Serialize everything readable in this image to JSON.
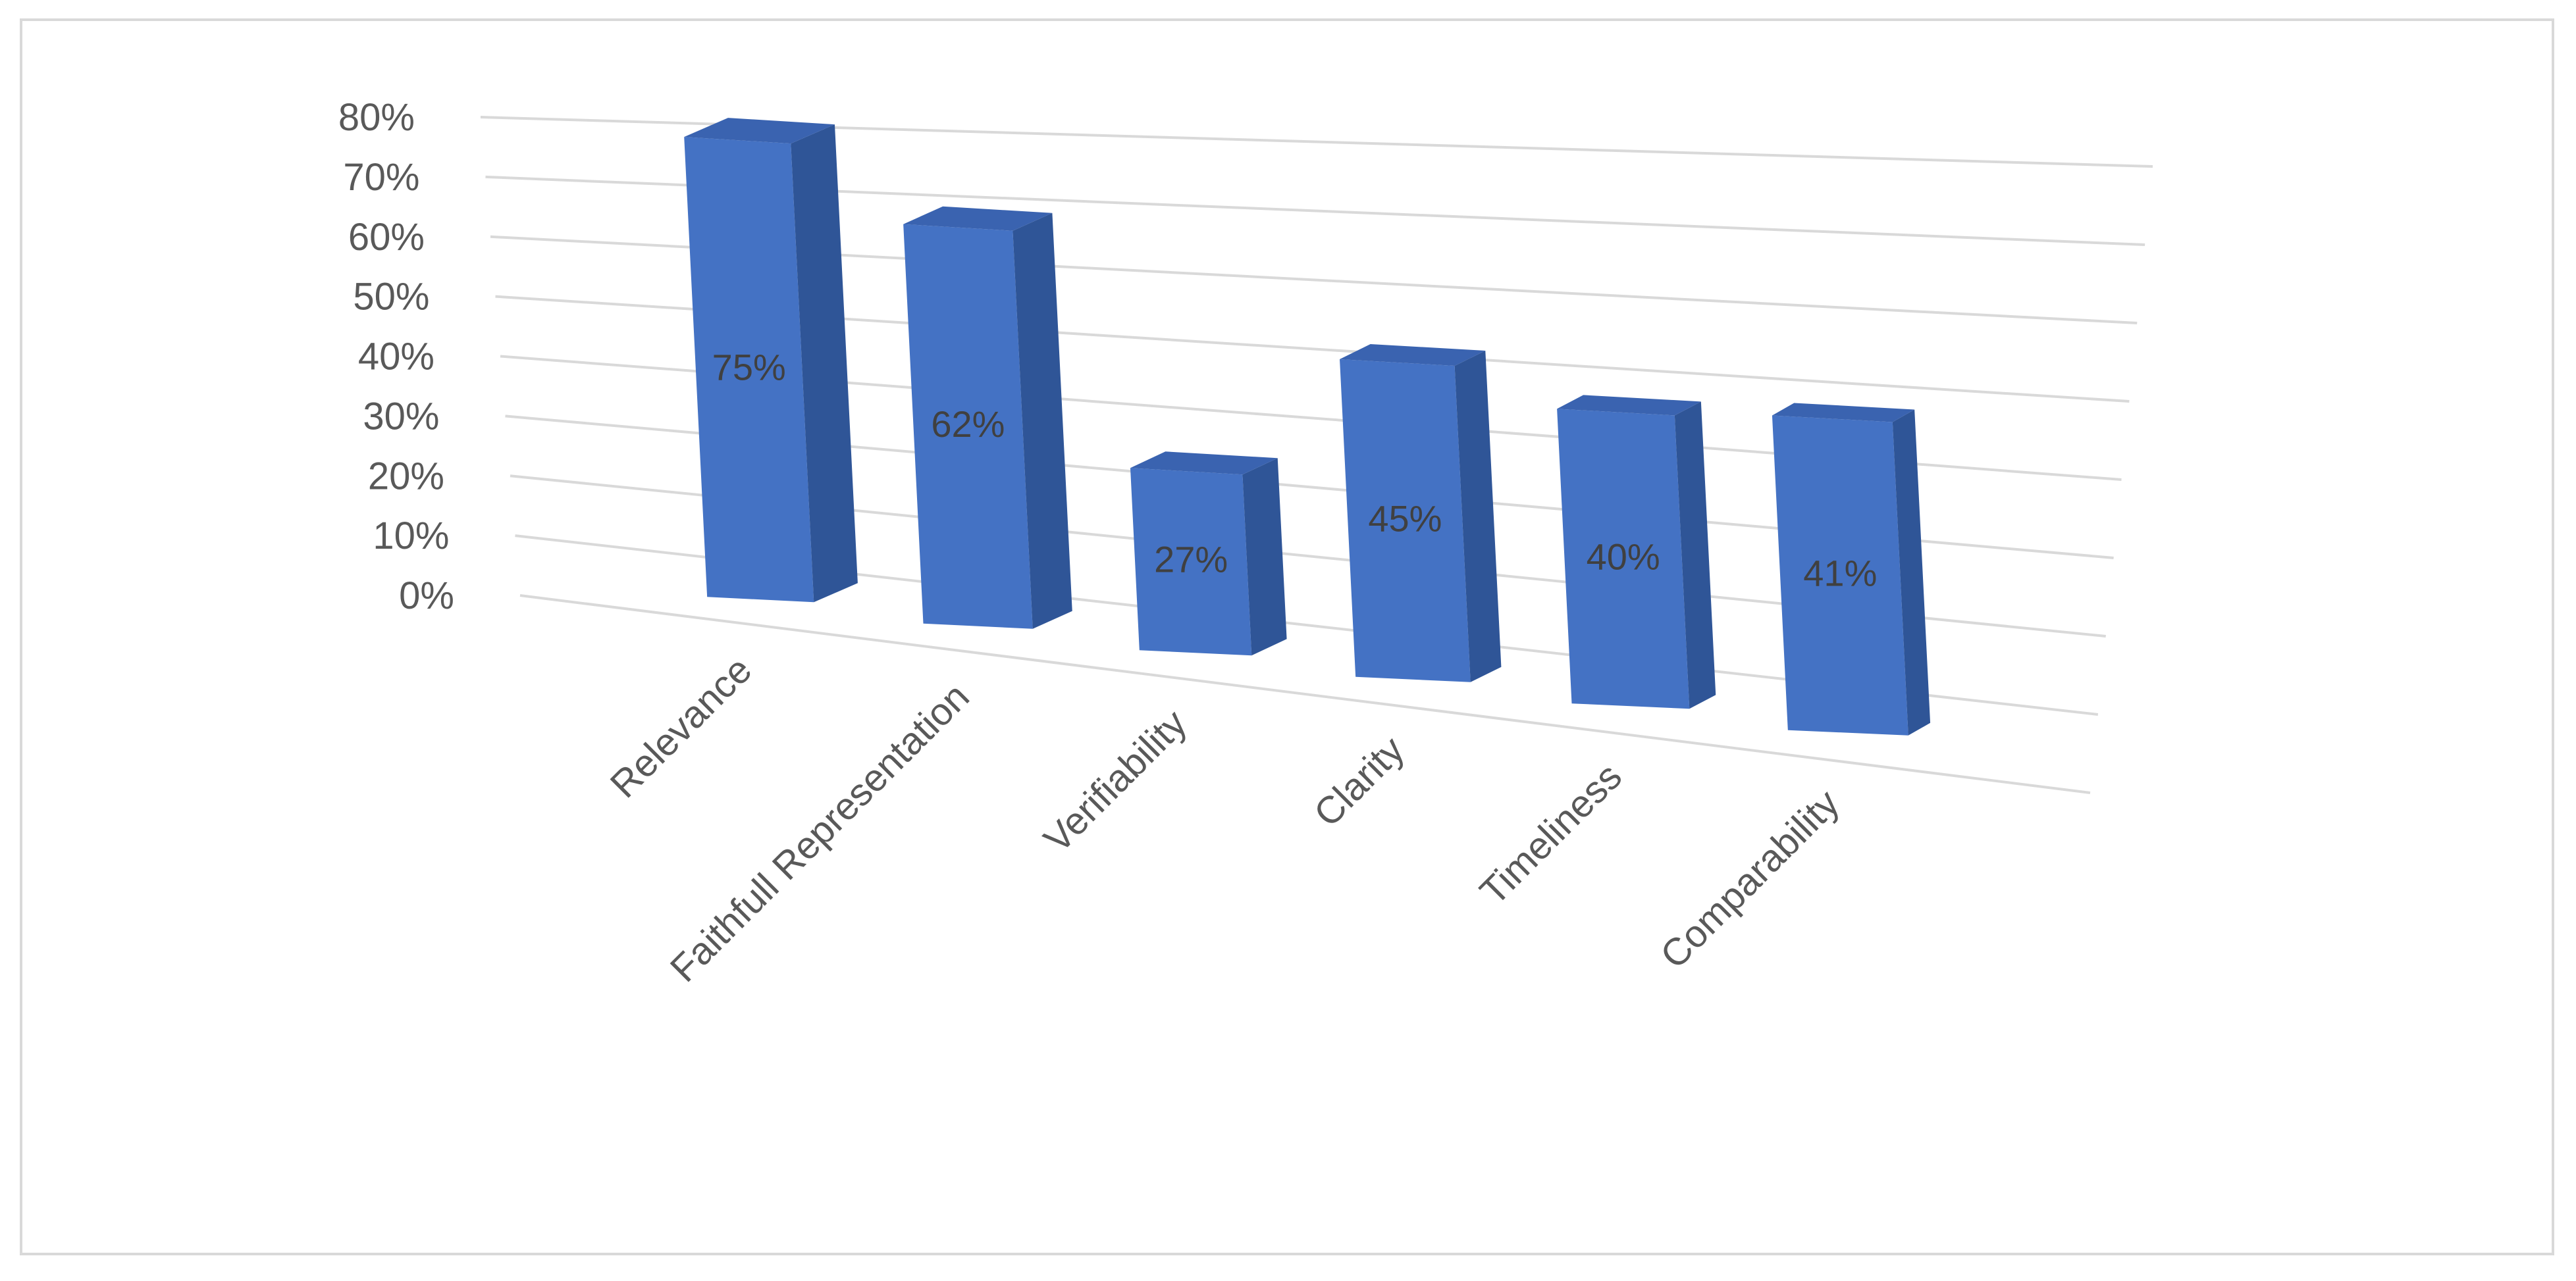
{
  "chart_data": {
    "type": "bar",
    "style": "3d-perspective-column",
    "categories": [
      "Relevance",
      "Faithfull Representation",
      "Verifiability",
      "Clarity",
      "Timeliness",
      "Comparability"
    ],
    "values": [
      0.75,
      0.62,
      0.27,
      0.45,
      0.4,
      0.41
    ],
    "data_labels": [
      "75%",
      "62%",
      "27%",
      "45%",
      "40%",
      "41%"
    ],
    "y_ticks": [
      "0%",
      "10%",
      "20%",
      "30%",
      "40%",
      "50%",
      "60%",
      "70%",
      "80%"
    ],
    "ylim": [
      0,
      0.8
    ],
    "grid": true,
    "legend": "none",
    "colors": {
      "bar_front": "#4472c4",
      "bar_side": "#2f5597",
      "bar_top": "#3a63b0",
      "grid": "#d9d9d9",
      "frame": "#d9d9d9"
    }
  }
}
